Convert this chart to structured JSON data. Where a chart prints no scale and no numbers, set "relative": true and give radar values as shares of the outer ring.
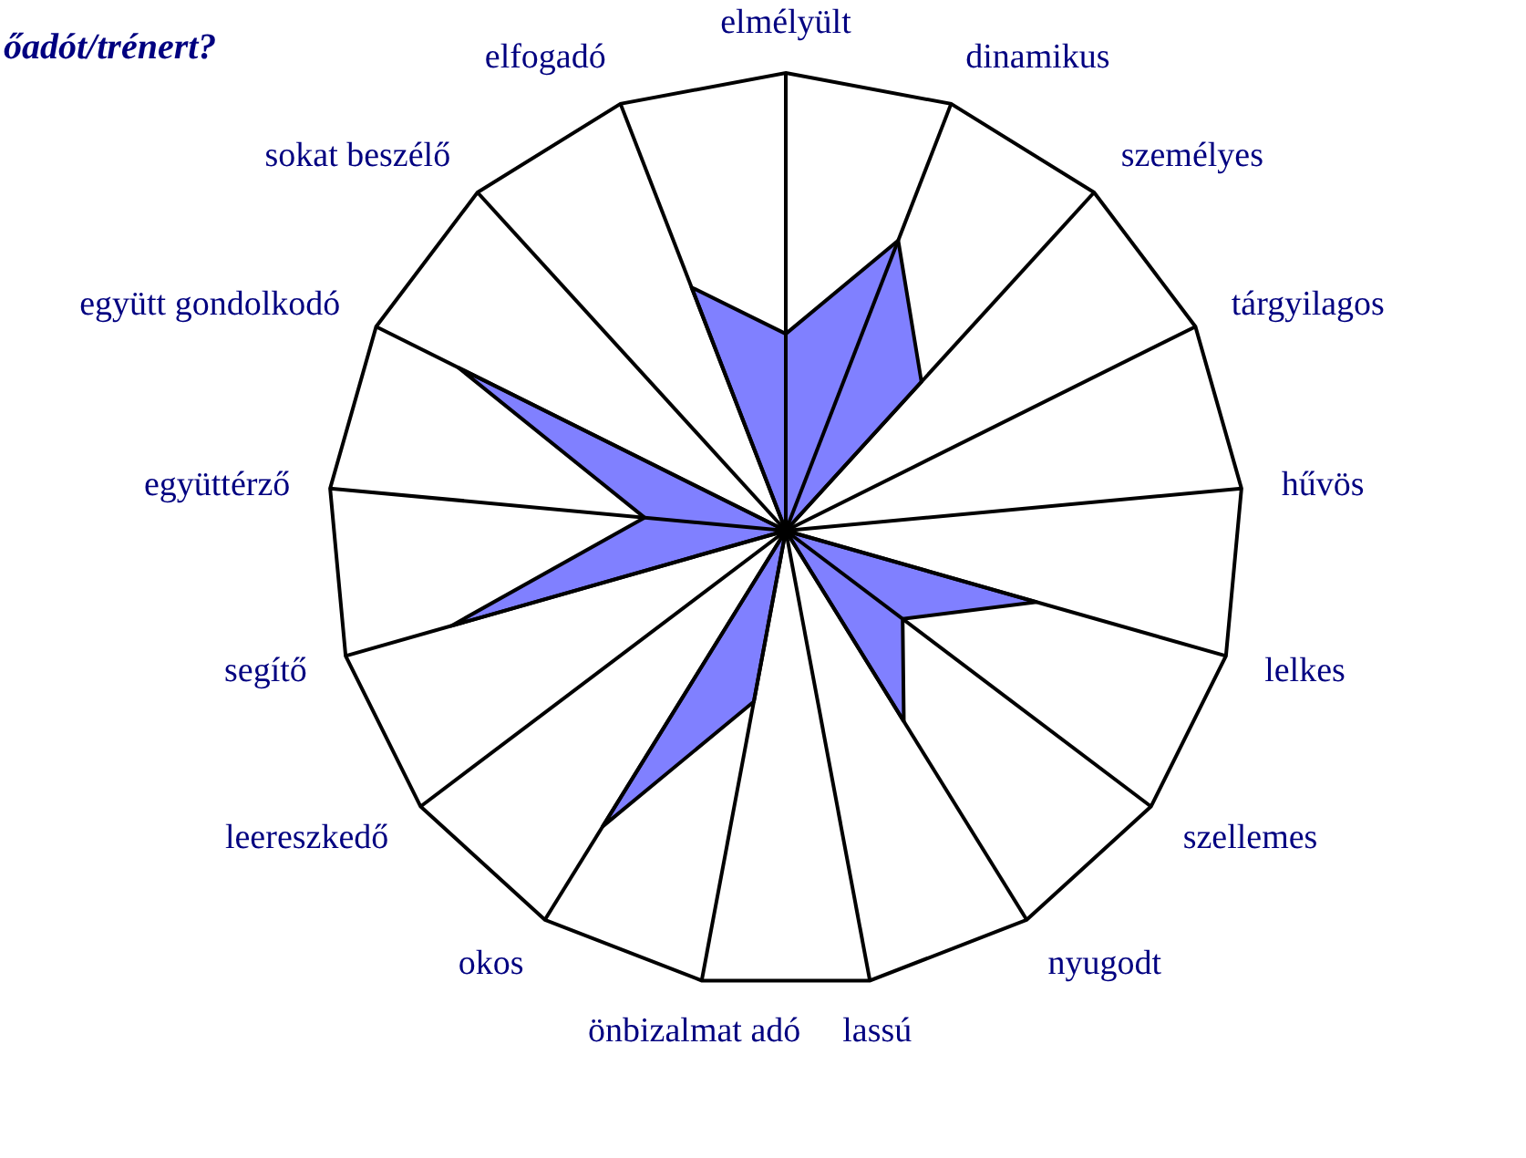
{
  "chart_data": {
    "type": "radar",
    "title": "őadót/trénert?",
    "relative": true,
    "categories": [
      "elmélyült",
      "dinamikus",
      "személyes",
      "tárgyilagos",
      "hűvös",
      "lelkes",
      "szellemes",
      "nyugodt",
      "lassú",
      "önbizalmat adó",
      "okos",
      "leereszkedő",
      "segítő",
      "együttérző",
      "együtt gondolkodó",
      "sokat beszélő",
      "elfogadó"
    ],
    "series": [
      {
        "color": "#8080ff",
        "values": [
          0.43,
          0.68,
          0.44,
          0,
          0,
          0.57,
          0.32,
          0.49,
          0,
          0.38,
          0.76,
          0,
          0.76,
          0.31,
          0.8,
          0,
          0.57
        ]
      }
    ]
  }
}
